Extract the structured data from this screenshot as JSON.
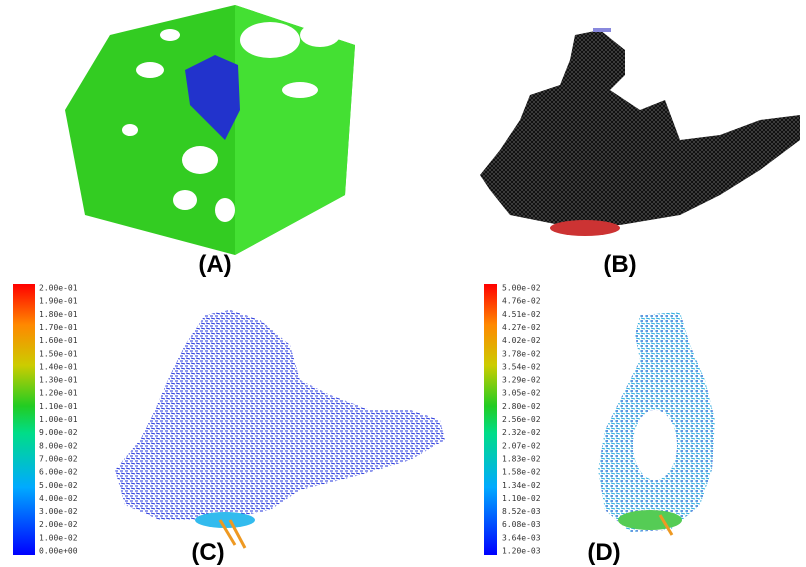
{
  "panels": [
    {
      "label": "(A)"
    },
    {
      "label": "(B)"
    },
    {
      "label": "(C)",
      "colorbar": [
        "2.00e-01",
        "1.90e-01",
        "1.80e-01",
        "1.70e-01",
        "1.60e-01",
        "1.50e-01",
        "1.40e-01",
        "1.30e-01",
        "1.20e-01",
        "1.10e-01",
        "1.00e-01",
        "9.00e-02",
        "8.00e-02",
        "7.00e-02",
        "6.00e-02",
        "5.00e-02",
        "4.00e-02",
        "3.00e-02",
        "2.00e-02",
        "1.00e-02",
        "0.00e+00"
      ]
    },
    {
      "label": "(D)",
      "colorbar": [
        "5.00e-02",
        "4.76e-02",
        "4.51e-02",
        "4.27e-02",
        "4.02e-02",
        "3.78e-02",
        "3.54e-02",
        "3.29e-02",
        "3.05e-02",
        "2.80e-02",
        "2.56e-02",
        "2.32e-02",
        "2.07e-02",
        "1.83e-02",
        "1.58e-02",
        "1.34e-02",
        "1.10e-02",
        "8.52e-03",
        "6.08e-03",
        "3.64e-03",
        "1.20e-03"
      ]
    }
  ]
}
